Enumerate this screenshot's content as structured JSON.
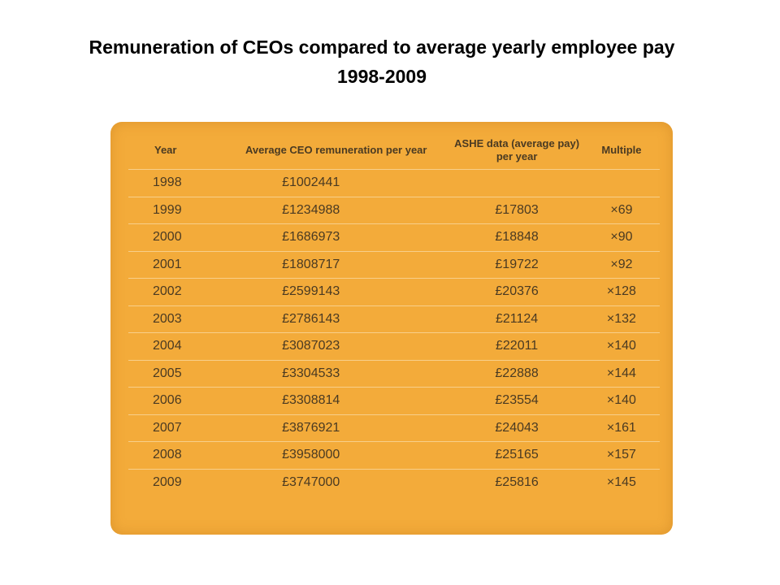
{
  "title": {
    "line1": "Remuneration of CEOs compared to average yearly employee pay",
    "line2": "1998-2009"
  },
  "table": {
    "headers": {
      "year": "Year",
      "ceo": "Average CEO remuneration per year",
      "ashe": "ASHE data (average pay) per year",
      "multiple": "Multiple"
    },
    "rows": [
      {
        "year": "1998",
        "ceo": "£1002441",
        "ashe": "",
        "multiple": ""
      },
      {
        "year": "1999",
        "ceo": "£1234988",
        "ashe": "£17803",
        "multiple": "×69"
      },
      {
        "year": "2000",
        "ceo": "£1686973",
        "ashe": "£18848",
        "multiple": "×90"
      },
      {
        "year": "2001",
        "ceo": "£1808717",
        "ashe": "£19722",
        "multiple": "×92"
      },
      {
        "year": "2002",
        "ceo": "£2599143",
        "ashe": "£20376",
        "multiple": "×128"
      },
      {
        "year": "2003",
        "ceo": "£2786143",
        "ashe": "£21124",
        "multiple": "×132"
      },
      {
        "year": "2004",
        "ceo": "£3087023",
        "ashe": "£22011",
        "multiple": "×140"
      },
      {
        "year": "2005",
        "ceo": "£3304533",
        "ashe": "£22888",
        "multiple": "×144"
      },
      {
        "year": "2006",
        "ceo": "£3308814",
        "ashe": "£23554",
        "multiple": "×140"
      },
      {
        "year": "2007",
        "ceo": "£3876921",
        "ashe": "£24043",
        "multiple": "×161"
      },
      {
        "year": "2008",
        "ceo": "£3958000",
        "ashe": "£25165",
        "multiple": "×157"
      },
      {
        "year": "2009",
        "ceo": "£3747000",
        "ashe": "£25816",
        "multiple": "×145"
      }
    ]
  },
  "colors": {
    "card_background": "#f3ab3a",
    "text": "#4a3a22",
    "row_divider": "#f8cf8a"
  }
}
